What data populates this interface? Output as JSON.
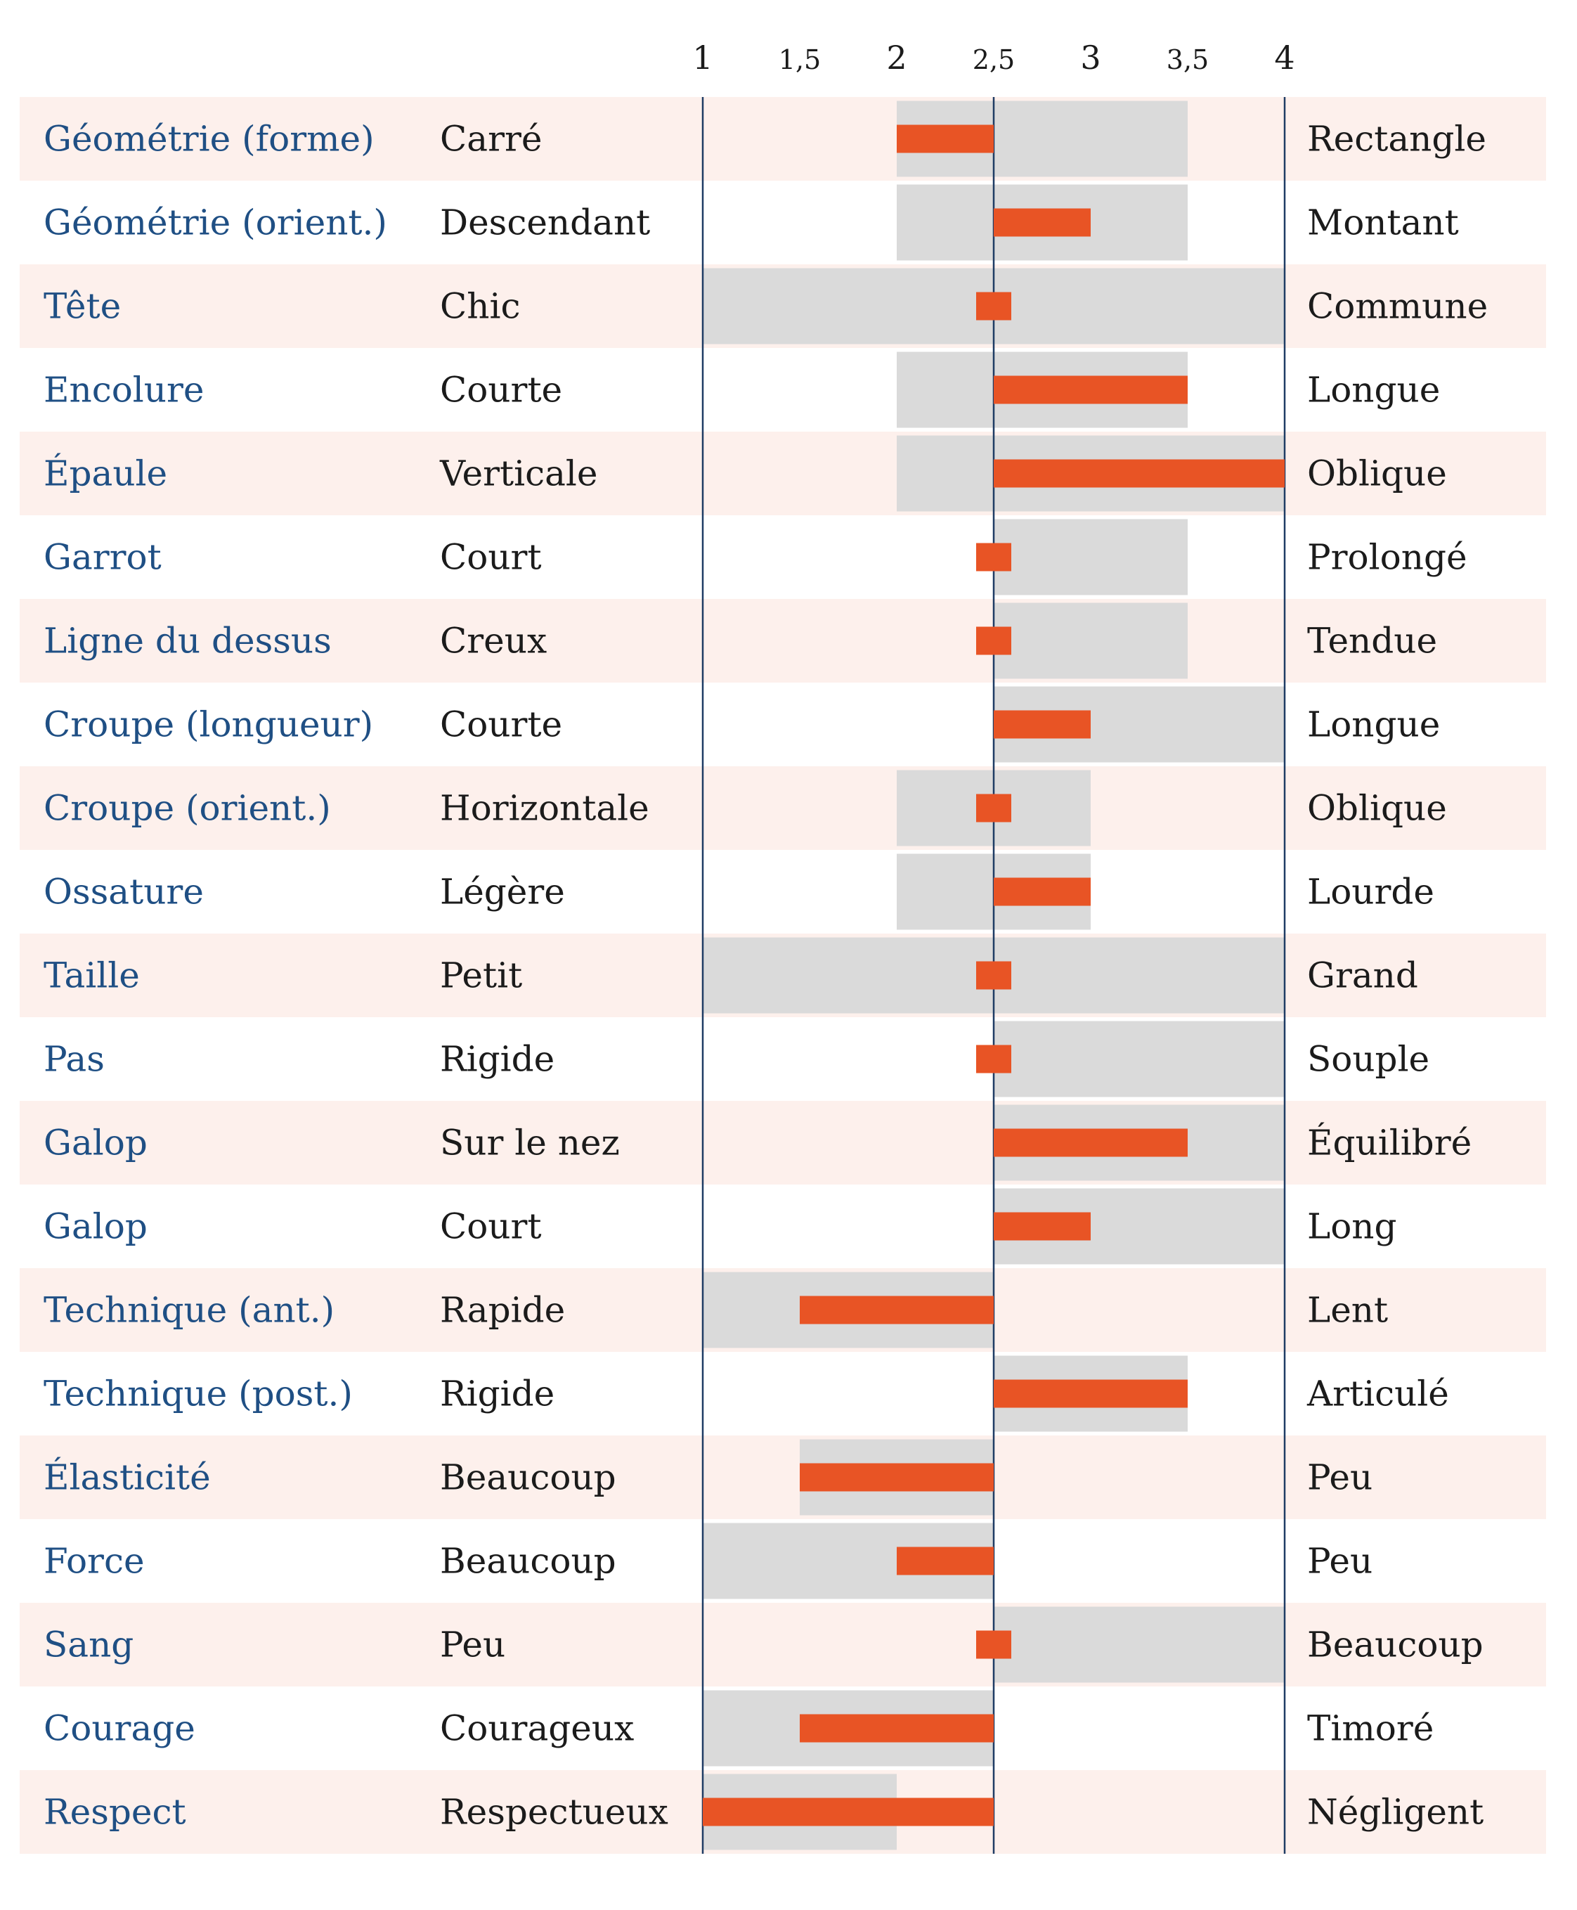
{
  "chart_data": {
    "type": "bar",
    "x_ticks": [
      {
        "value": 1,
        "label": "1"
      },
      {
        "value": 1.5,
        "label": "1,5"
      },
      {
        "value": 2,
        "label": "2"
      },
      {
        "value": 2.5,
        "label": "2,5"
      },
      {
        "value": 3,
        "label": "3"
      },
      {
        "value": 3.5,
        "label": "3,5"
      },
      {
        "value": 4,
        "label": "4"
      }
    ],
    "xlim": [
      1,
      4
    ],
    "center": 2.5,
    "title": "",
    "xlabel": "",
    "ylabel": "",
    "grid": false,
    "rows": [
      {
        "attribute": "Géométrie (forme)",
        "low": "Carré",
        "high": "Rectangle",
        "value": 2.0,
        "range": [
          2.0,
          3.5
        ]
      },
      {
        "attribute": "Géométrie (orient.)",
        "low": "Descendant",
        "high": "Montant",
        "value": 3.0,
        "range": [
          2.0,
          3.5
        ]
      },
      {
        "attribute": "Tête",
        "low": "Chic",
        "high": "Commune",
        "value": 2.5,
        "range": [
          1.0,
          4.0
        ]
      },
      {
        "attribute": "Encolure",
        "low": "Courte",
        "high": "Longue",
        "value": 3.5,
        "range": [
          2.0,
          3.5
        ]
      },
      {
        "attribute": "Épaule",
        "low": "Verticale",
        "high": "Oblique",
        "value": 4.0,
        "range": [
          2.0,
          4.0
        ]
      },
      {
        "attribute": "Garrot",
        "low": "Court",
        "high": "Prolongé",
        "value": 2.5,
        "range": [
          2.5,
          3.5
        ]
      },
      {
        "attribute": "Ligne du dessus",
        "low": "Creux",
        "high": "Tendue",
        "value": 2.5,
        "range": [
          2.5,
          3.5
        ]
      },
      {
        "attribute": "Croupe (longueur)",
        "low": "Courte",
        "high": "Longue",
        "value": 3.0,
        "range": [
          2.5,
          4.0
        ]
      },
      {
        "attribute": "Croupe (orient.)",
        "low": "Horizontale",
        "high": "Oblique",
        "value": 2.5,
        "range": [
          2.0,
          3.0
        ]
      },
      {
        "attribute": "Ossature",
        "low": "Légère",
        "high": "Lourde",
        "value": 3.0,
        "range": [
          2.0,
          3.0
        ]
      },
      {
        "attribute": "Taille",
        "low": "Petit",
        "high": "Grand",
        "value": 2.5,
        "range": [
          1.0,
          4.0
        ]
      },
      {
        "attribute": "Pas",
        "low": "Rigide",
        "high": "Souple",
        "value": 2.5,
        "range": [
          2.5,
          4.0
        ]
      },
      {
        "attribute": "Galop",
        "low": "Sur le nez",
        "high": "Équilibré",
        "value": 3.5,
        "range": [
          2.5,
          4.0
        ]
      },
      {
        "attribute": "Galop",
        "low": "Court",
        "high": "Long",
        "value": 3.0,
        "range": [
          2.5,
          4.0
        ]
      },
      {
        "attribute": "Technique (ant.)",
        "low": "Rapide",
        "high": "Lent",
        "value": 1.5,
        "range": [
          1.0,
          2.5
        ]
      },
      {
        "attribute": "Technique (post.)",
        "low": "Rigide",
        "high": "Articulé",
        "value": 3.5,
        "range": [
          2.5,
          3.5
        ]
      },
      {
        "attribute": "Élasticité",
        "low": "Beaucoup",
        "high": "Peu",
        "value": 1.5,
        "range": [
          1.5,
          2.5
        ]
      },
      {
        "attribute": "Force",
        "low": "Beaucoup",
        "high": "Peu",
        "value": 2.0,
        "range": [
          1.0,
          2.5
        ]
      },
      {
        "attribute": "Sang",
        "low": "Peu",
        "high": "Beaucoup",
        "value": 2.5,
        "range": [
          2.5,
          4.0
        ]
      },
      {
        "attribute": "Courage",
        "low": "Courageux",
        "high": "Timoré",
        "value": 1.5,
        "range": [
          1.0,
          2.5
        ]
      },
      {
        "attribute": "Respect",
        "low": "Respectueux",
        "high": "Négligent",
        "value": 1.0,
        "range": [
          1.0,
          2.0
        ]
      }
    ]
  },
  "colors": {
    "attribute_text": "#1f4f84",
    "pole_text": "#1b1b1b",
    "row_band": "#fdf0ec",
    "range_bar": "#dadada",
    "value_bar": "#e85425",
    "axis_line": "#1f3c64"
  }
}
